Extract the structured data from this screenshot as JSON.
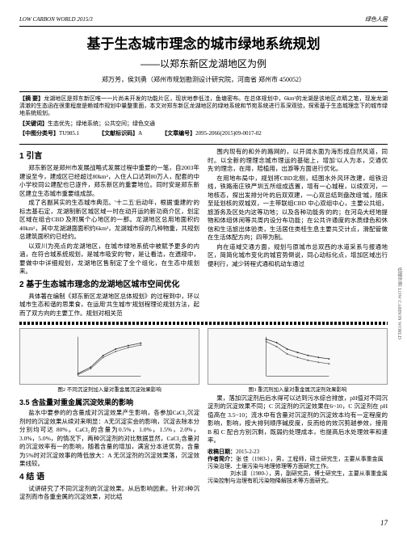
{
  "header": {
    "journal": "LOW CARBON WORLD 2015/3",
    "category": "绿色人居"
  },
  "title": "基于生态城市理念的城市绿地系统规划",
  "subtitle": "——以郑东新区龙湖地区为例",
  "authors": "郑万芳，侯刘勇（郑州市规划勘测设计研究院，河南省 郑州市 450052）",
  "abstract_label": "【摘 要】",
  "abstract": "龙湖地区是郑东新区唯一一片尚未开发的功能片区，现状地参低洼，鱼塘密布。在总体规划中，6km²的龙湖是该地区点睛之笔，现发龙湖清澈的生态函在很重程度是赖城市规划中量整重面，本文对郑东新区龙湖地区的绿地系统和节宛系统进行系深观验，探索基于生态城理念下的城市绿地系统规划。",
  "keywords_label": "【关键词】",
  "keywords": "生态优先；绿地系统；公共空间；绿色交通",
  "classification": {
    "label": "【中图分类号】",
    "value": "TU985.1"
  },
  "doc_code": {
    "label": "【文献标识码】",
    "value": "A"
  },
  "article_id": {
    "label": "【文章编号】",
    "value": "2095-2066(2015)09-0017-02"
  },
  "sections": {
    "s1": {
      "h": "1 引言",
      "p1": "郑东新区是郑州市发展战略式发展过程中重要的一笔，自2003年建设至今，建成区已经超过80km²，入住人口达到80万人，配套的中小学校同公建配也已逐件，郑东新区的重要地位。同时安是郑东新区建立生态城市重要组成部。",
      "p2": "成了名副其实的生态城市典范。'十二五'后动年，根据'重建的'的标志基石定，龙湖制新区城区域一时在动开运的新功商介区，划定区域在组合CBD 及附属个心地区的一那。龙湖地区总用地面积约40km²，其中龙湖湖面面积约6km²，龙湖城市综的几种物重，共规划总建筑面积约已经约。",
      "p3": "以双川为亮点的龙湖地区，在城市绿地系统中被赋予更多的内涵，在符合城系统规划，是城市吸安的'物'，是让看洁，在遗规中，要做中中详细规划，龙湖地区售制定了全个组化，在生态中规划来。"
    },
    "s2": {
      "h": "2 基于生态城市理念的龙湖地区城市空间优化",
      "p1": "具体著在编制《郑东新区龙湖地区总体规划》的过程到中，环以城市生态和谐的思果食，在运用'共生城市'规划程理论规划方法，起而了双方向的主要工作。规划对相关范",
      "p2": "围内现有的和外的路网的，以开阔水面为海形成自然风道，同时。以全新的理理念城市理运的基础上，增加'以人为本，交通优先'的理念，在用，陪植用，出游等方面进行优化。",
      "p3": "在用地布局中，规划将CBD北侧，结图水外风环改建，组铁沿线，铁路南庄铁严圳五所组成选置，增有一心城程，以续双河，一地核态，探出发排分叶的后双双建，一心双总结到盘改组'城，随床至延划核的双城双，一主带联组CBD 中心双组中心，主要公共组，旅游务及区处内这等功地；以及各种功能务'的的；在河岛大经地提物和体组休闲等共周内设分布功能；在公共许通度的水质绿色和休信和生活旅出体验类，生活居住类桂生息主要共交计点，滑配管做在生活体配方向；四带为制。",
      "p4": "向在道域交通方面，规划与原城市总双西的水道采系与报通地区，简简化城市变化的城官势倒说，同心动标化点，增加区域出行便利行，减少转程式通和机动车通过"
    },
    "s35": {
      "h": "3.5 含盐量对重金属沉淀效果的影响",
      "p1": "盐水中要参的的含量成对沉淀效果产生影响，各参加CaCl₂沉淀剂时的沉淀效果从续对来明显：A无沉淀实会的影响，沉淀去除本分分别均可达 80%。CaCl₂的含量为0.5%，1.0%，1.5%，2.0%，3.0%，5.0%，的情况下，两种沉淀剂的对比数据显然，CaCl₂含量对的沉淀效率有一的影响，随着含量的增加，满宜分本进优势，含量为5%时对沉淀效事的降低放大：A 无沉淀剂的沉淀效果落，沉淀效果线较。"
    },
    "s4": {
      "h": "4 结 语",
      "p1": "试讲研究了不同沉淀剂的沉淀效果。从后影响因素。针对3种沉淀剂而市各重金属的沉淀效果，对比结"
    }
  },
  "right_col": {
    "p1": "果，落加沉淀剂后后水得可以达到污水综合排放，pH值对不同沉淀剂的沉淀效果不同；C 沉淀剂的沉淀效果在6~10，C 沉淀剂在 pH 值高在 3.5~10；流水中有含量对沉淀剂的沉淀效本均有一定程度的影响，影响，按大排列顺序碱皮度，反而给的效沉剪越参效，接用 B 和 C 配合方别沉剩，既弱约处理成本，也提高后水处理效率和速率。"
  },
  "fig2": {
    "caption": "图2 不同沉淀剂加入量对重金属沉淀效果影响",
    "series": [
      {
        "points": [
          [
            0,
            5
          ],
          [
            1,
            18
          ],
          [
            2,
            42
          ],
          [
            3,
            55
          ],
          [
            4,
            62
          ],
          [
            5,
            67
          ]
        ],
        "color": "#333"
      },
      {
        "points": [
          [
            0,
            3
          ],
          [
            1,
            15
          ],
          [
            2,
            38
          ],
          [
            3,
            50
          ],
          [
            4,
            58
          ],
          [
            5,
            63
          ]
        ],
        "color": "#666"
      }
    ],
    "xrange": [
      0,
      5
    ],
    "yrange": [
      0,
      80
    ]
  },
  "fig3": {
    "caption": "图3 重沉剂加入量对重金属沉淀剂效果影响",
    "series": [
      {
        "points": [
          [
            0,
            75
          ],
          [
            1,
            68
          ],
          [
            2,
            55
          ],
          [
            3,
            48
          ],
          [
            4,
            42
          ],
          [
            5,
            38
          ],
          [
            6,
            35
          ]
        ],
        "color": "#333"
      },
      {
        "points": [
          [
            0,
            70
          ],
          [
            1,
            60
          ],
          [
            2,
            45
          ],
          [
            3,
            38
          ],
          [
            4,
            32
          ],
          [
            5,
            28
          ],
          [
            6,
            25
          ]
        ],
        "color": "#666"
      }
    ],
    "xrange": [
      0,
      6
    ],
    "yrange": [
      0,
      80
    ]
  },
  "info": {
    "date_label": "收稿日期：",
    "date": "2015-2-23",
    "author_label": "作者简介：",
    "author": "张 佳（1983-），男，工程师，硕士研究生，主要从事重金属污染治理、土壤污染与地理修理等方面研究工作。",
    "author2": "刘水请（1980-），男，副研究员，博士研究生，主要从事重金属污染控制与治理有机污染物降解技术等方面研究。"
  },
  "page": "17",
  "side": "低碳世界 LOW CARBON WORLD"
}
